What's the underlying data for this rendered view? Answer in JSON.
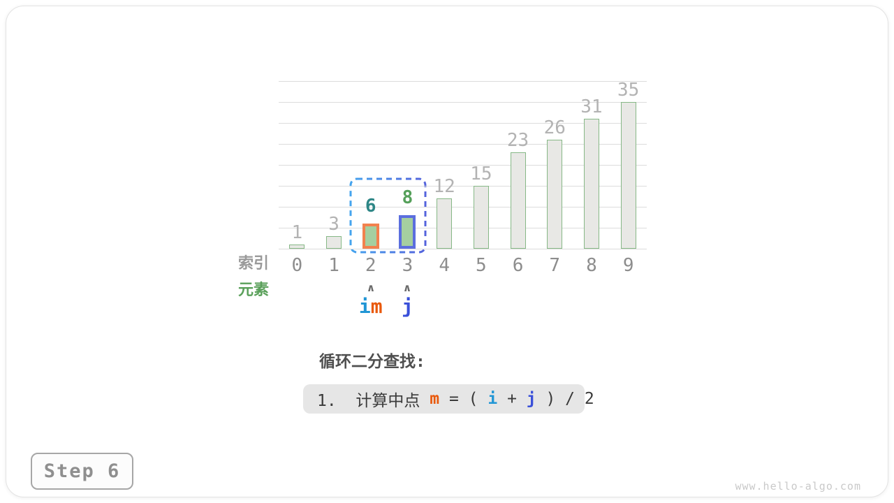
{
  "chart_data": {
    "type": "bar",
    "categories": [
      "0",
      "1",
      "2",
      "3",
      "4",
      "5",
      "6",
      "7",
      "8",
      "9"
    ],
    "values": [
      1,
      3,
      6,
      8,
      12,
      15,
      23,
      26,
      31,
      35
    ],
    "xlabel": "索引",
    "ylabel": "元素",
    "ylim": [
      0,
      40
    ],
    "gridline_step": 5,
    "grid": true,
    "legend": "none",
    "bar_fill": "#e8e8e5",
    "bar_border": "#86b886",
    "value_label_color": "#b3b3b3",
    "highlights": [
      {
        "index": 2,
        "border_color": "#f2814e",
        "fill": "#a5cfa0",
        "label_color": "#2e8686"
      },
      {
        "index": 3,
        "border_color": "#5b6ede",
        "fill": "#a5cfa0",
        "label_color": "#55a05a"
      }
    ],
    "selection_range": {
      "from_index": 2,
      "to_index": 3,
      "stroke_from": "#45a4ee",
      "stroke_to": "#5463dc"
    }
  },
  "axis_labels": {
    "elements": "元素",
    "index": "索引"
  },
  "pointers": [
    {
      "slot": 2,
      "caret": "∧",
      "parts": [
        {
          "text": "i",
          "color": "#2196d5"
        },
        {
          "text": "m",
          "color": "#e9590c"
        }
      ]
    },
    {
      "slot": 3,
      "caret": "∧",
      "parts": [
        {
          "text": "j",
          "color": "#3a50d9"
        }
      ]
    }
  ],
  "caption": {
    "title": "循环二分查找:",
    "formula_parts": [
      {
        "text": "1.  计算中点 ",
        "color": "#3a3a3a",
        "bold": false
      },
      {
        "text": "m",
        "color": "#e9590c",
        "bold": true
      },
      {
        "text": " = ( ",
        "color": "#3a3a3a",
        "bold": false
      },
      {
        "text": "i",
        "color": "#2196d5",
        "bold": true
      },
      {
        "text": " + ",
        "color": "#3a3a3a",
        "bold": false
      },
      {
        "text": "j",
        "color": "#3a50d9",
        "bold": true
      },
      {
        "text": " ) / 2",
        "color": "#3a3a3a",
        "bold": false
      }
    ]
  },
  "step_badge": {
    "label": "Step 6"
  },
  "watermark": "www.hello-algo.com",
  "colors": {
    "pointer_i": "#2196d5",
    "pointer_m": "#e9590c",
    "pointer_j": "#3a50d9",
    "highlight_orange": "#f2814e",
    "highlight_indigo": "#5b6ede",
    "highlight_green_fill": "#a5cfa0",
    "grid": "#dcdcdc",
    "canvas_border": "#e3e3e3"
  }
}
